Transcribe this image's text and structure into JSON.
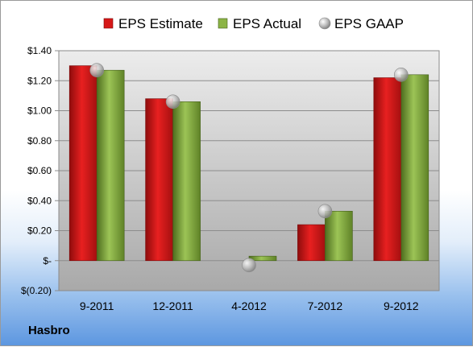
{
  "company": "Hasbro",
  "chart_data": {
    "type": "bar",
    "categories": [
      "9-2011",
      "12-2011",
      "4-2012",
      "7-2012",
      "9-2012"
    ],
    "series": [
      {
        "name": "EPS Estimate",
        "values": [
          1.3,
          1.08,
          0,
          0.24,
          1.22
        ],
        "color": "#e01c1c",
        "kind": "bar"
      },
      {
        "name": "EPS Actual",
        "values": [
          1.27,
          1.06,
          0.03,
          0.33,
          1.24
        ],
        "color": "#8cb446",
        "kind": "bar"
      },
      {
        "name": "EPS GAAP",
        "values": [
          1.27,
          1.06,
          -0.03,
          0.33,
          1.24
        ],
        "color": "#b9b9b9",
        "kind": "marker"
      }
    ],
    "yticks": [
      "$1.40",
      "$1.20",
      "$1.00",
      "$0.80",
      "$0.60",
      "$0.40",
      "$0.20",
      "$-",
      "$(0.20)"
    ],
    "ylim": [
      -0.2,
      1.4
    ],
    "grid": true,
    "legend": "top"
  }
}
